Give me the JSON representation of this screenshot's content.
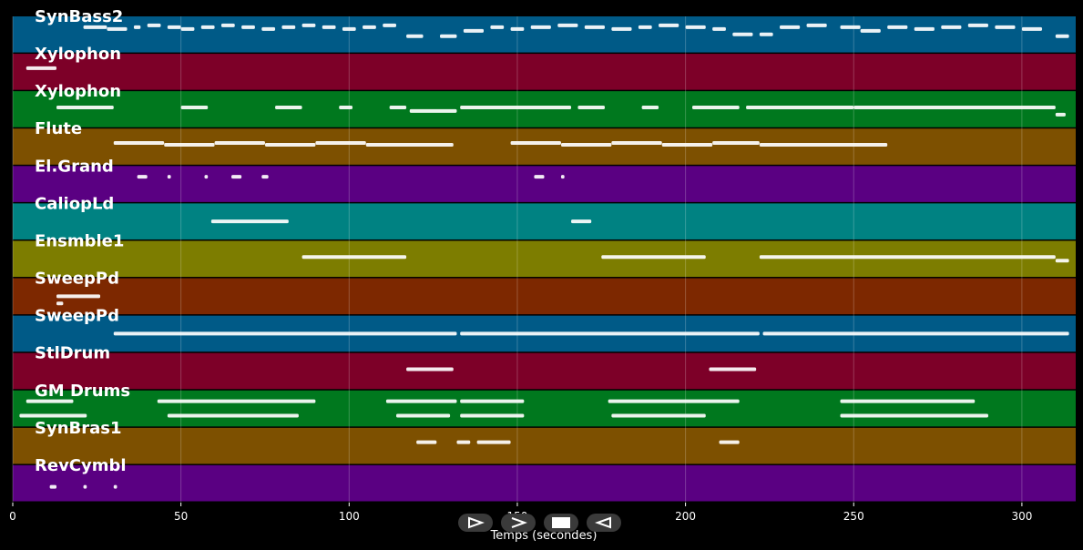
{
  "chart_data": {
    "type": "piano-roll",
    "xlabel": "Temps (secondes)",
    "xlim": [
      0,
      316
    ],
    "x_ticks": [
      0,
      50,
      100,
      150,
      200,
      250,
      300
    ],
    "grid": true,
    "tracks": [
      {
        "name": "SynBass2",
        "color": "#005A87",
        "notes": [
          [
            21,
            28,
            0.3
          ],
          [
            28,
            34,
            0.35
          ],
          [
            36,
            38,
            0.3
          ],
          [
            40,
            44,
            0.25
          ],
          [
            46,
            50,
            0.3
          ],
          [
            50,
            54,
            0.35
          ],
          [
            56,
            60,
            0.3
          ],
          [
            62,
            66,
            0.25
          ],
          [
            68,
            72,
            0.3
          ],
          [
            74,
            78,
            0.35
          ],
          [
            80,
            84,
            0.3
          ],
          [
            86,
            90,
            0.25
          ],
          [
            92,
            96,
            0.3
          ],
          [
            98,
            102,
            0.35
          ],
          [
            104,
            108,
            0.3
          ],
          [
            110,
            114,
            0.25
          ],
          [
            117,
            122,
            0.55
          ],
          [
            127,
            132,
            0.55
          ],
          [
            134,
            140,
            0.4
          ],
          [
            142,
            146,
            0.3
          ],
          [
            148,
            152,
            0.35
          ],
          [
            154,
            160,
            0.3
          ],
          [
            162,
            168,
            0.25
          ],
          [
            170,
            176,
            0.3
          ],
          [
            178,
            184,
            0.35
          ],
          [
            186,
            190,
            0.3
          ],
          [
            192,
            198,
            0.25
          ],
          [
            200,
            206,
            0.3
          ],
          [
            208,
            212,
            0.35
          ],
          [
            214,
            220,
            0.5
          ],
          [
            222,
            226,
            0.5
          ],
          [
            228,
            234,
            0.3
          ],
          [
            236,
            242,
            0.25
          ],
          [
            246,
            252,
            0.3
          ],
          [
            252,
            258,
            0.4
          ],
          [
            260,
            266,
            0.3
          ],
          [
            268,
            274,
            0.35
          ],
          [
            276,
            282,
            0.3
          ],
          [
            284,
            290,
            0.25
          ],
          [
            292,
            298,
            0.3
          ],
          [
            300,
            306,
            0.35
          ],
          [
            310,
            314,
            0.55
          ]
        ]
      },
      {
        "name": "Xylophon",
        "color": "#7D0028",
        "notes": [
          [
            4,
            13,
            0.4
          ]
        ]
      },
      {
        "name": "Xylophon",
        "color": "#00781E",
        "notes": [
          [
            13,
            30,
            0.45
          ],
          [
            50,
            58,
            0.45
          ],
          [
            78,
            86,
            0.45
          ],
          [
            97,
            101,
            0.45
          ],
          [
            112,
            117,
            0.45
          ],
          [
            118,
            132,
            0.55
          ],
          [
            133,
            166,
            0.45
          ],
          [
            168,
            176,
            0.45
          ],
          [
            187,
            192,
            0.45
          ],
          [
            202,
            216,
            0.45
          ],
          [
            218,
            250,
            0.45
          ],
          [
            250,
            310,
            0.45
          ],
          [
            310,
            313,
            0.65
          ]
        ]
      },
      {
        "name": "Flute",
        "color": "#7D5000",
        "notes": [
          [
            30,
            45,
            0.4
          ],
          [
            45,
            60,
            0.45
          ],
          [
            60,
            75,
            0.4
          ],
          [
            75,
            90,
            0.45
          ],
          [
            90,
            105,
            0.4
          ],
          [
            105,
            131,
            0.45
          ],
          [
            148,
            163,
            0.4
          ],
          [
            163,
            178,
            0.45
          ],
          [
            178,
            193,
            0.4
          ],
          [
            193,
            208,
            0.45
          ],
          [
            208,
            222,
            0.4
          ],
          [
            222,
            260,
            0.45
          ]
        ]
      },
      {
        "name": "El.Grand",
        "color": "#5A0082",
        "notes": [
          [
            37,
            40,
            0.3
          ],
          [
            46,
            47,
            0.3
          ],
          [
            57,
            58,
            0.3
          ],
          [
            65,
            68,
            0.3
          ],
          [
            74,
            76,
            0.3
          ],
          [
            155,
            158,
            0.3
          ],
          [
            163,
            164,
            0.3
          ]
        ]
      },
      {
        "name": "CaliopLd",
        "color": "#008282",
        "notes": [
          [
            59,
            82,
            0.5
          ],
          [
            166,
            172,
            0.5
          ]
        ]
      },
      {
        "name": "Ensmble1",
        "color": "#7D7D00",
        "notes": [
          [
            86,
            117,
            0.45
          ],
          [
            175,
            206,
            0.45
          ],
          [
            222,
            310,
            0.45
          ],
          [
            310,
            314,
            0.55
          ]
        ]
      },
      {
        "name": "SweepPd",
        "color": "#7D2800",
        "notes": [
          [
            13,
            26,
            0.5
          ],
          [
            13,
            15,
            0.7
          ]
        ]
      },
      {
        "name": "SweepPd",
        "color": "#005A87",
        "notes": [
          [
            30,
            132,
            0.5
          ],
          [
            133,
            222,
            0.5
          ],
          [
            223,
            314,
            0.5
          ]
        ]
      },
      {
        "name": "StlDrum",
        "color": "#7D0028",
        "notes": [
          [
            117,
            131,
            0.45
          ],
          [
            207,
            221,
            0.45
          ]
        ]
      },
      {
        "name": "GM Drums",
        "color": "#00781E",
        "notes": [
          [
            4,
            18,
            0.3
          ],
          [
            2,
            22,
            0.7
          ],
          [
            43,
            90,
            0.3
          ],
          [
            46,
            85,
            0.7
          ],
          [
            111,
            132,
            0.3
          ],
          [
            114,
            130,
            0.7
          ],
          [
            133,
            152,
            0.3
          ],
          [
            133,
            152,
            0.7
          ],
          [
            177,
            216,
            0.3
          ],
          [
            178,
            206,
            0.7
          ],
          [
            246,
            286,
            0.3
          ],
          [
            246,
            290,
            0.7
          ]
        ]
      },
      {
        "name": "SynBras1",
        "color": "#7D5000",
        "notes": [
          [
            120,
            126,
            0.4
          ],
          [
            132,
            136,
            0.4
          ],
          [
            138,
            148,
            0.4
          ],
          [
            210,
            216,
            0.4
          ]
        ]
      },
      {
        "name": "RevCymbl",
        "color": "#5A0082",
        "notes": [
          [
            11,
            13,
            0.6
          ],
          [
            21,
            22,
            0.6
          ],
          [
            30,
            31,
            0.6
          ]
        ]
      }
    ]
  },
  "controls": [
    {
      "icon": "play-outline-icon"
    },
    {
      "icon": "fast-forward-icon"
    },
    {
      "icon": "stop-icon"
    },
    {
      "icon": "rewind-icon"
    }
  ]
}
